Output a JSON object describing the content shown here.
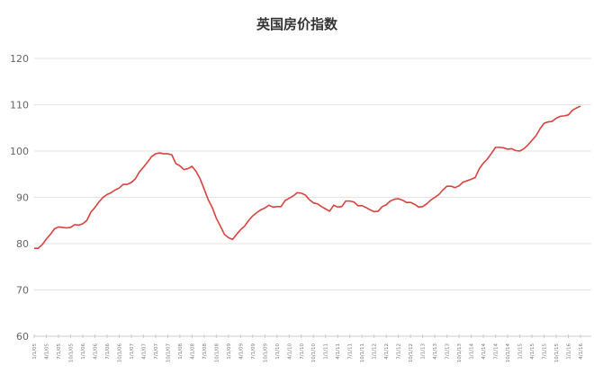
{
  "chart_data": {
    "type": "line",
    "title": "英国房价指数",
    "xlabel": "",
    "ylabel": "",
    "ylim": [
      60,
      120
    ],
    "yticks": [
      60,
      70,
      80,
      90,
      100,
      110,
      120
    ],
    "grid": "horizontal",
    "legend": "none",
    "line_color": "#d9423f",
    "x_tick_labels": [
      "1/1/05",
      "4/1/05",
      "7/1/05",
      "10/1/05",
      "1/1/06",
      "4/1/06",
      "7/1/06",
      "10/1/06",
      "1/1/07",
      "4/1/07",
      "7/1/07",
      "10/1/07",
      "1/1/08",
      "4/1/08",
      "7/1/08",
      "10/1/08",
      "1/1/09",
      "4/1/09",
      "7/1/09",
      "10/1/09",
      "1/1/10",
      "4/1/10",
      "7/1/10",
      "10/1/10",
      "1/1/11",
      "4/1/11",
      "7/1/11",
      "10/1/11",
      "1/1/12",
      "4/1/12",
      "7/1/12",
      "10/1/12",
      "1/1/13",
      "4/1/13",
      "7/1/13",
      "10/1/13",
      "1/1/14",
      "4/1/14",
      "7/1/14",
      "10/1/14",
      "1/1/15",
      "4/1/15",
      "7/1/15",
      "10/1/15",
      "1/1/16",
      "4/1/16"
    ],
    "x_frequency": "monthly, Jan 2005 - Apr 2016",
    "series": [
      {
        "name": "英国房价指数",
        "values": [
          79.0,
          79.0,
          79.8,
          81.0,
          82.0,
          83.2,
          83.6,
          83.5,
          83.4,
          83.5,
          84.1,
          84.0,
          84.3,
          85.0,
          86.8,
          87.8,
          89.0,
          90.0,
          90.6,
          91.0,
          91.6,
          92.0,
          92.8,
          92.8,
          93.2,
          94.0,
          95.5,
          96.5,
          97.6,
          98.8,
          99.4,
          99.6,
          99.4,
          99.4,
          99.2,
          97.3,
          96.8,
          96.0,
          96.2,
          96.7,
          95.6,
          94.0,
          91.8,
          89.5,
          87.8,
          85.5,
          83.8,
          82.0,
          81.3,
          80.9,
          82.0,
          83.0,
          83.8,
          85.0,
          86.0,
          86.7,
          87.3,
          87.7,
          88.3,
          87.9,
          88.0,
          88.0,
          89.3,
          89.8,
          90.3,
          91.0,
          90.9,
          90.5,
          89.5,
          88.8,
          88.6,
          88.0,
          87.5,
          87.0,
          88.3,
          87.9,
          88.0,
          89.2,
          89.2,
          89.0,
          88.2,
          88.2,
          87.8,
          87.3,
          86.9,
          87.0,
          88.0,
          88.4,
          89.2,
          89.6,
          89.7,
          89.4,
          88.9,
          88.9,
          88.5,
          87.9,
          88.0,
          88.6,
          89.4,
          90.0,
          90.6,
          91.6,
          92.4,
          92.4,
          92.1,
          92.5,
          93.3,
          93.6,
          93.9,
          94.3,
          96.2,
          97.4,
          98.3,
          99.5,
          100.8,
          100.8,
          100.7,
          100.4,
          100.5,
          100.1,
          100.0,
          100.5,
          101.3,
          102.3,
          103.3,
          104.8,
          106.0,
          106.3,
          106.4,
          107.1,
          107.5,
          107.6,
          107.8,
          108.8,
          109.3,
          109.7
        ]
      }
    ]
  }
}
